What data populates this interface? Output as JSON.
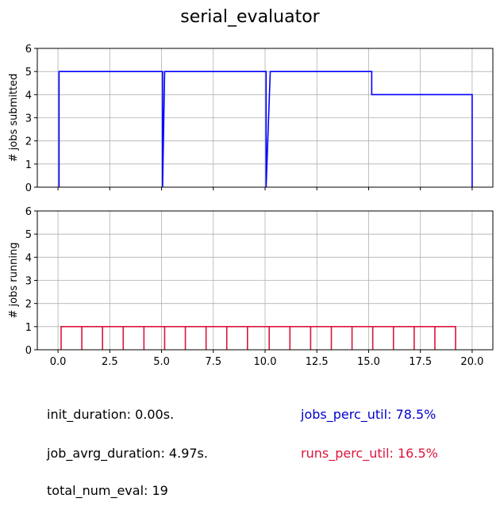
{
  "chart_data": {
    "title": "serial_evaluator",
    "type": "line",
    "shared_x": true,
    "xlim": [
      -1.0,
      21.0
    ],
    "xticks": [
      0.0,
      2.5,
      5.0,
      7.5,
      10.0,
      12.5,
      15.0,
      17.5,
      20.0
    ],
    "xtick_labels": [
      "0.0",
      "2.5",
      "5.0",
      "7.5",
      "10.0",
      "12.5",
      "15.0",
      "17.5",
      "20.0"
    ],
    "grid": true,
    "panels": [
      {
        "id": "submitted",
        "ylabel": "# jobs submitted",
        "ylim": [
          0,
          6
        ],
        "yticks": [
          0,
          1,
          2,
          3,
          4,
          5,
          6
        ],
        "series": [
          {
            "color": "#0000ff",
            "drawstyle": "steps-post",
            "x": [
              0.05,
              0.05,
              0.15,
              5.05,
              5.05,
              5.15,
              10.05,
              10.05,
              10.25,
              15.15,
              15.15,
              20.0,
              20.0
            ],
            "y": [
              0,
              5,
              5,
              5,
              0,
              5,
              5,
              0,
              5,
              5,
              4,
              4,
              0
            ]
          }
        ]
      },
      {
        "id": "running",
        "ylabel": "# jobs running",
        "ylim": [
          0,
          6
        ],
        "yticks": [
          0,
          1,
          2,
          3,
          4,
          5,
          6
        ],
        "series": [
          {
            "color": "#dc143c",
            "drawstyle": "pulses",
            "height": 1,
            "x": [
              0.15,
              1.15,
              2.15,
              3.15,
              4.15,
              5.15,
              6.15,
              7.15,
              8.15,
              9.15,
              10.2,
              11.2,
              12.2,
              13.2,
              14.2,
              15.2,
              16.2,
              17.2,
              18.2,
              19.2
            ]
          }
        ]
      }
    ]
  },
  "stats": {
    "init_duration": "init_duration: 0.00s.",
    "job_avrg_duration": "job_avrg_duration: 4.97s.",
    "total_num_eval": "total_num_eval: 19",
    "jobs_perc_util": "jobs_perc_util: 78.5%",
    "runs_perc_util": "runs_perc_util: 16.5%"
  },
  "colors": {
    "submitted": "#0000ff",
    "running": "#dc143c",
    "jobs_util_text": "#0000cd",
    "runs_util_text": "#dc143c",
    "grid": "#b0b0b0"
  }
}
